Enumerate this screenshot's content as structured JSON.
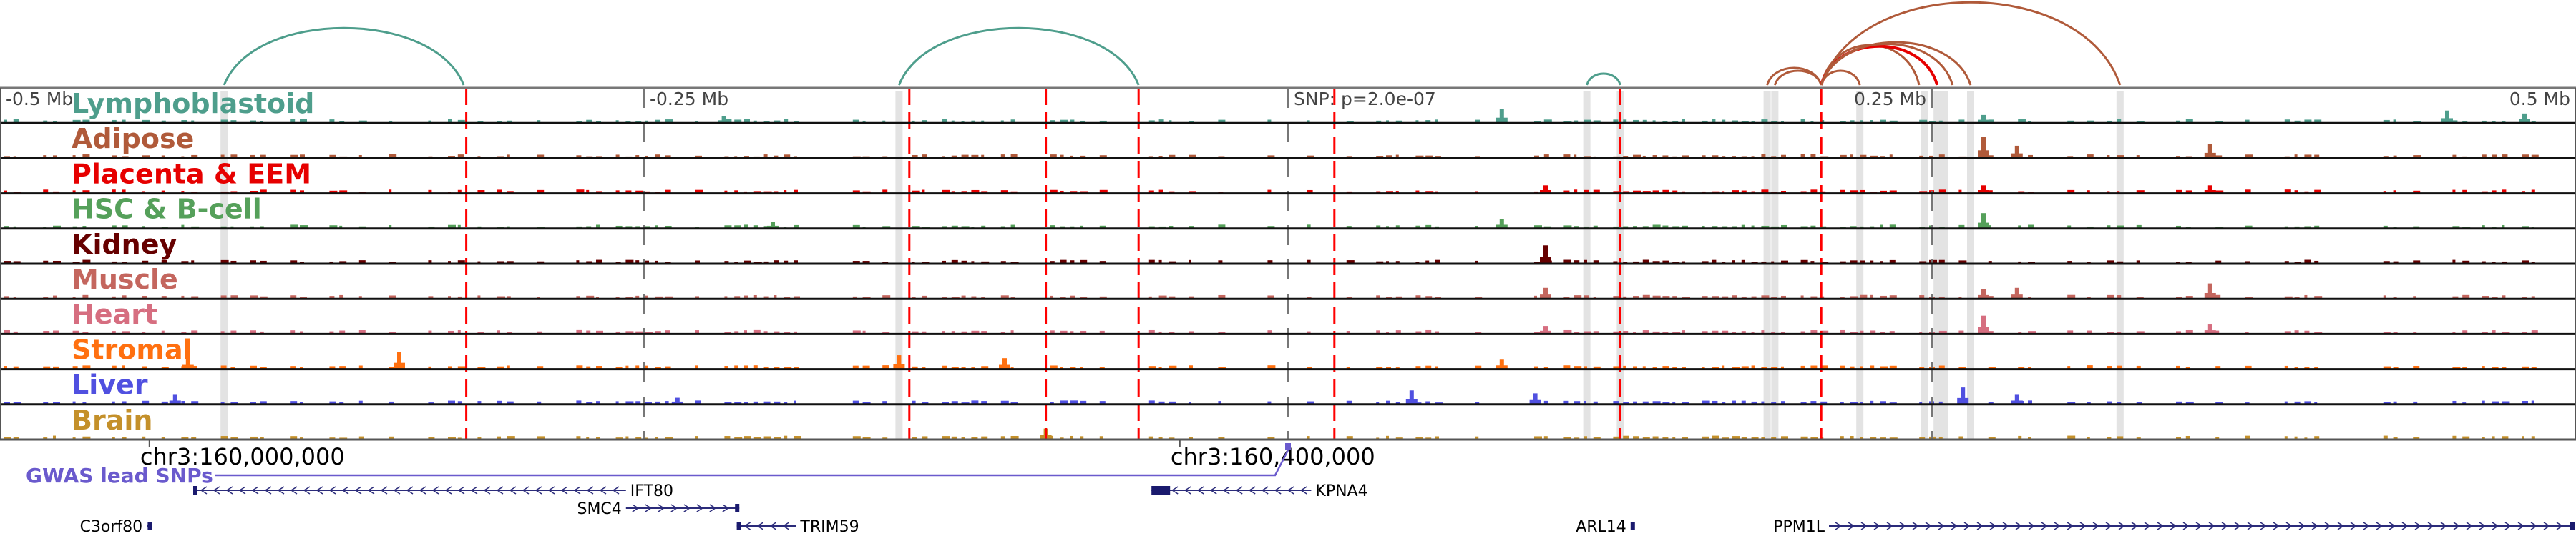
{
  "chart_data": {
    "type": "genome-browser-tracks",
    "region": {
      "chrom": "chr3",
      "center_label": "SNP",
      "span_label_min": "-0.5 Mb",
      "span_label_max": "0.5 Mb"
    },
    "xlim_mb": [
      -0.5,
      0.5
    ],
    "axis_ticks": [
      {
        "pos_mb": -0.5,
        "label": "-0.5 Mb"
      },
      {
        "pos_mb": -0.25,
        "label": "-0.25 Mb"
      },
      {
        "pos_mb": 0.0,
        "label": "SNP: p=2.0e-07"
      },
      {
        "pos_mb": 0.25,
        "label": "0.25 Mb"
      },
      {
        "pos_mb": 0.5,
        "label": "0.5 Mb"
      }
    ],
    "genomic_ticks": [
      {
        "pos_mb": -0.442,
        "label": "chr3:160,000,000"
      },
      {
        "pos_mb": -0.042,
        "label": "chr3:160,400,000"
      }
    ],
    "tracks": [
      {
        "name": "Lymphoblastoid",
        "color": "#4e9e8c"
      },
      {
        "name": "Adipose",
        "color": "#b05a3a"
      },
      {
        "name": "Placenta & EEM",
        "color": "#e60000"
      },
      {
        "name": "HSC & B-cell",
        "color": "#55a05a"
      },
      {
        "name": "Kidney",
        "color": "#660000"
      },
      {
        "name": "Muscle",
        "color": "#c4665e"
      },
      {
        "name": "Heart",
        "color": "#d66e80"
      },
      {
        "name": "Stromal",
        "color": "#ff7010"
      },
      {
        "name": "Liver",
        "color": "#5050e0"
      },
      {
        "name": "Brain",
        "color": "#c4902a"
      }
    ],
    "peaks_mb": [
      {
        "pos": -0.427,
        "track": 7,
        "h": 0.35
      },
      {
        "pos": -0.345,
        "track": 7,
        "h": 0.55
      },
      {
        "pos": -0.432,
        "track": 8,
        "h": 0.3
      },
      {
        "pos": -0.237,
        "track": 8,
        "h": 0.2
      },
      {
        "pos": -0.219,
        "track": 0,
        "h": 0.2
      },
      {
        "pos": -0.2,
        "track": 3,
        "h": 0.2
      },
      {
        "pos": -0.151,
        "track": 7,
        "h": 0.45
      },
      {
        "pos": -0.094,
        "track": 9,
        "h": 0.35
      },
      {
        "pos": -0.11,
        "track": 7,
        "h": 0.35
      },
      {
        "pos": 0.048,
        "track": 8,
        "h": 0.45
      },
      {
        "pos": 0.083,
        "track": 0,
        "h": 0.45
      },
      {
        "pos": 0.083,
        "track": 3,
        "h": 0.3
      },
      {
        "pos": 0.083,
        "track": 7,
        "h": 0.3
      },
      {
        "pos": 0.096,
        "track": 8,
        "h": 0.35
      },
      {
        "pos": 0.1,
        "track": 4,
        "h": 0.6
      },
      {
        "pos": 0.1,
        "track": 2,
        "h": 0.25
      },
      {
        "pos": 0.1,
        "track": 5,
        "h": 0.35
      },
      {
        "pos": 0.1,
        "track": 6,
        "h": 0.25
      },
      {
        "pos": 0.27,
        "track": 1,
        "h": 0.7
      },
      {
        "pos": 0.27,
        "track": 3,
        "h": 0.5
      },
      {
        "pos": 0.27,
        "track": 6,
        "h": 0.6
      },
      {
        "pos": 0.262,
        "track": 8,
        "h": 0.55
      },
      {
        "pos": 0.283,
        "track": 1,
        "h": 0.4
      },
      {
        "pos": 0.283,
        "track": 5,
        "h": 0.35
      },
      {
        "pos": 0.283,
        "track": 8,
        "h": 0.3
      },
      {
        "pos": 0.27,
        "track": 2,
        "h": 0.25
      },
      {
        "pos": 0.27,
        "track": 0,
        "h": 0.25
      },
      {
        "pos": 0.27,
        "track": 5,
        "h": 0.3
      },
      {
        "pos": 0.358,
        "track": 1,
        "h": 0.45
      },
      {
        "pos": 0.358,
        "track": 5,
        "h": 0.5
      },
      {
        "pos": 0.358,
        "track": 6,
        "h": 0.3
      },
      {
        "pos": 0.358,
        "track": 2,
        "h": 0.25
      },
      {
        "pos": 0.45,
        "track": 0,
        "h": 0.4
      },
      {
        "pos": 0.48,
        "track": 0,
        "h": 0.3
      }
    ],
    "red_markers_mb": [
      -0.319,
      -0.147,
      -0.094,
      -0.058,
      0.018,
      0.129,
      0.207
    ],
    "grey_highlights_mb": [
      -0.413,
      -0.151,
      0.116,
      0.129,
      0.186,
      0.189,
      0.222,
      0.247,
      0.252,
      0.255,
      0.265,
      0.323
    ],
    "arcs": [
      {
        "from": -0.413,
        "to": -0.32,
        "color": "#4e9e8c",
        "height": 1.0
      },
      {
        "from": -0.151,
        "to": -0.058,
        "color": "#4e9e8c",
        "height": 1.0
      },
      {
        "from": 0.116,
        "to": 0.129,
        "color": "#4e9e8c",
        "height": 0.2
      },
      {
        "from": 0.186,
        "to": 0.207,
        "color": "#b05a3a",
        "height": 0.3
      },
      {
        "from": 0.189,
        "to": 0.207,
        "color": "#b05a3a",
        "height": 0.25
      },
      {
        "from": 0.207,
        "to": 0.222,
        "color": "#b05a3a",
        "height": 0.25
      },
      {
        "from": 0.207,
        "to": 0.245,
        "color": "#b05a3a",
        "height": 0.7
      },
      {
        "from": 0.207,
        "to": 0.252,
        "color": "#e60000",
        "height": 0.68
      },
      {
        "from": 0.207,
        "to": 0.258,
        "color": "#b05a3a",
        "height": 0.72
      },
      {
        "from": 0.207,
        "to": 0.265,
        "color": "#b05a3a",
        "height": 0.75
      },
      {
        "from": 0.207,
        "to": 0.323,
        "color": "#b05a3a",
        "height": 1.45
      }
    ],
    "gwas": {
      "label": "GWAS lead SNPs",
      "snp_pos_mb": 0.0,
      "color": "#6a5acd"
    },
    "genes": [
      {
        "name": "IFT80",
        "start_mb": -0.425,
        "end_mb": -0.257,
        "strand": "-",
        "row": 0
      },
      {
        "name": "KPNA4",
        "start_mb": -0.053,
        "end_mb": 0.009,
        "strand": "-",
        "row": 0
      },
      {
        "name": "SMC4",
        "start_mb": -0.257,
        "end_mb": -0.213,
        "strand": "+",
        "row": 1
      },
      {
        "name": "C3orf80",
        "start_mb": -0.443,
        "end_mb": -0.441,
        "strand": "+",
        "row": 2
      },
      {
        "name": "TRIM59",
        "start_mb": -0.214,
        "end_mb": -0.191,
        "strand": "-",
        "row": 2
      },
      {
        "name": "ARL14",
        "start_mb": 0.133,
        "end_mb": 0.134,
        "strand": "+",
        "row": 2
      },
      {
        "name": "PPM1L",
        "start_mb": 0.21,
        "end_mb": 0.5,
        "strand": "+",
        "row": 2
      }
    ]
  }
}
